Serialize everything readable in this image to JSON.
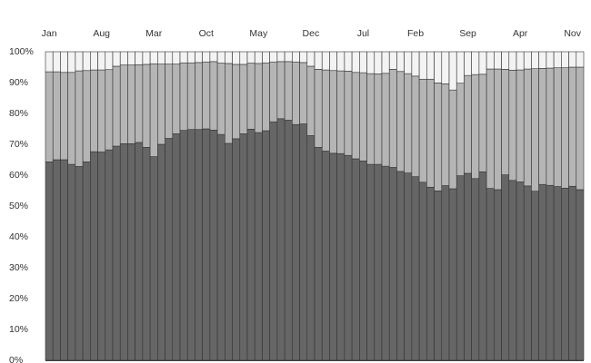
{
  "chart_data": {
    "type": "bar",
    "stacked": true,
    "normalized": true,
    "title": "",
    "xlabel": "",
    "ylabel": "",
    "ylim": [
      0,
      100
    ],
    "grid": true,
    "legend": "none",
    "x_tick_labels": [
      "Jan",
      "Aug",
      "Mar",
      "Oct",
      "May",
      "Dec",
      "Jul",
      "Feb",
      "Sep",
      "Apr",
      "Nov"
    ],
    "y_tick_labels": [
      "0%",
      "10%",
      "20%",
      "30%",
      "40%",
      "50%",
      "60%",
      "70%",
      "80%",
      "90%",
      "100%"
    ],
    "y_ticks": [
      0,
      10,
      20,
      30,
      40,
      50,
      60,
      70,
      80,
      90,
      100
    ],
    "colors": {
      "bottom": "#666666",
      "middle": "#b5b5b5",
      "top": "#f3f3f3",
      "stroke": "#333333",
      "grid": "#444444"
    },
    "series": [
      {
        "values": [
          64.3,
          65,
          65,
          63.5,
          62.8,
          64.3,
          67.6,
          67.5,
          68.2,
          69.4,
          70.2,
          70.2,
          70.6,
          69,
          66,
          70,
          71.9,
          73.4,
          74.5,
          74.8,
          74.8,
          75,
          74.6,
          73.2,
          70.3,
          71.8,
          73.4,
          74.9,
          73.8,
          74.4,
          77.3,
          78.3,
          77.8,
          76.4,
          76.6,
          72.8,
          69,
          67.8,
          67.1,
          67,
          66.4,
          65.3,
          64.6,
          63.5,
          63.5,
          62.9,
          62.5,
          61.2,
          60.7,
          59.5,
          57.7,
          56.1,
          54.9,
          56.6,
          55.6,
          59.8,
          60.6,
          58.9,
          61.1,
          55.7,
          55.3,
          60.1,
          58.3,
          57.8,
          56.5,
          54.8,
          57,
          56.7,
          56.3,
          55.8,
          56.4,
          55.3
        ]
      },
      {
        "values": [
          29.2,
          28.5,
          28.3,
          29.8,
          31,
          29.6,
          26.5,
          26.6,
          26,
          25.9,
          25.5,
          25.5,
          25.2,
          26.9,
          30.1,
          26,
          24.1,
          22.6,
          21.9,
          21.6,
          21.7,
          21.7,
          22.2,
          23.1,
          25.9,
          24.1,
          22.5,
          21.4,
          22.4,
          22,
          19.4,
          18.5,
          19,
          20.3,
          19.9,
          22.5,
          25.3,
          26.3,
          26.8,
          26.8,
          27.3,
          28,
          28.6,
          29.4,
          29.3,
          30.1,
          31.8,
          32.4,
          32.2,
          32.6,
          33.4,
          35,
          35,
          33,
          32,
          30,
          31.7,
          33.7,
          31.6,
          38.7,
          39.1,
          34.2,
          35.7,
          36.3,
          37.9,
          39.7,
          37.6,
          38,
          38.5,
          39,
          38.6,
          39.7
        ]
      }
    ]
  }
}
